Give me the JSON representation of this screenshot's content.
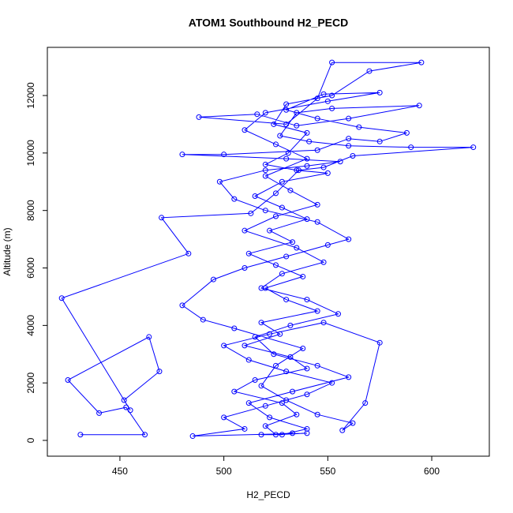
{
  "chart_data": {
    "type": "line",
    "title": "ATOM1 Southbound H2_PECD",
    "x_label": "H2_PECD",
    "y_label": "Altitude (m)",
    "color": "#0000ff",
    "xlim": [
      415.1,
      627.7
    ],
    "ylim": [
      -549,
      13676
    ],
    "xticks": [
      450,
      500,
      550,
      600
    ],
    "yticks": [
      0,
      2000,
      4000,
      6000,
      8000,
      10000,
      12000
    ],
    "x": [
      431,
      462,
      453,
      440,
      425,
      464,
      469,
      452,
      455,
      422,
      483,
      470,
      513,
      525,
      536,
      548,
      562,
      620,
      590,
      560,
      541,
      527,
      535,
      552,
      594,
      560,
      535,
      516,
      488,
      530,
      545,
      552,
      595,
      570,
      552,
      530,
      524,
      540,
      531,
      520,
      535,
      550,
      528,
      515,
      528,
      540,
      522,
      533,
      512,
      525,
      538,
      520,
      530,
      545,
      518,
      527,
      510,
      532,
      540,
      515,
      505,
      528,
      535,
      520,
      525,
      540,
      485,
      510,
      500,
      520,
      540,
      552,
      530,
      512,
      500,
      522,
      548,
      575,
      568,
      557,
      562,
      545,
      530,
      518,
      525,
      538,
      505,
      490,
      480,
      495,
      510,
      530,
      550,
      560,
      545,
      520,
      505,
      498,
      520,
      540,
      556,
      530,
      480,
      500,
      545,
      560,
      575,
      588,
      565,
      545,
      530,
      548,
      575,
      550,
      520,
      510,
      525,
      540,
      520,
      532,
      545,
      525,
      510,
      535,
      548,
      528,
      518,
      540,
      555,
      532,
      515,
      524,
      545,
      560,
      533,
      512,
      522,
      540,
      528,
      518,
      533
    ],
    "values": [
      200,
      200,
      1150,
      950,
      2100,
      3600,
      2400,
      1400,
      1050,
      4950,
      6500,
      7750,
      7900,
      8600,
      9400,
      9500,
      9900,
      10200,
      10200,
      10250,
      10400,
      10600,
      11400,
      11550,
      11650,
      11200,
      10950,
      11350,
      11250,
      11000,
      11900,
      13150,
      13150,
      12850,
      12000,
      11700,
      11000,
      10700,
      10000,
      9600,
      9400,
      9300,
      9000,
      8500,
      8100,
      7700,
      7300,
      6900,
      6500,
      6100,
      5700,
      5300,
      4900,
      4500,
      4100,
      3700,
      3300,
      2900,
      2500,
      2100,
      1700,
      1300,
      900,
      500,
      200,
      250,
      150,
      400,
      800,
      1200,
      1600,
      2000,
      2400,
      2800,
      3300,
      3700,
      4100,
      3400,
      1300,
      350,
      600,
      900,
      1400,
      1900,
      2600,
      3200,
      3900,
      4200,
      4700,
      5600,
      6000,
      6400,
      6800,
      7000,
      7600,
      8000,
      8400,
      9000,
      9400,
      9550,
      9700,
      9800,
      9950,
      9950,
      10100,
      10500,
      10400,
      10700,
      10900,
      11200,
      11500,
      12050,
      12100,
      11800,
      11400,
      10800,
      10300,
      9800,
      9200,
      8700,
      8200,
      7800,
      7300,
      6700,
      6200,
      5800,
      5300,
      4900,
      4400,
      4000,
      3600,
      3000,
      2600,
      2200,
      1700,
      1300,
      800,
      400,
      200,
      200,
      250
    ]
  }
}
